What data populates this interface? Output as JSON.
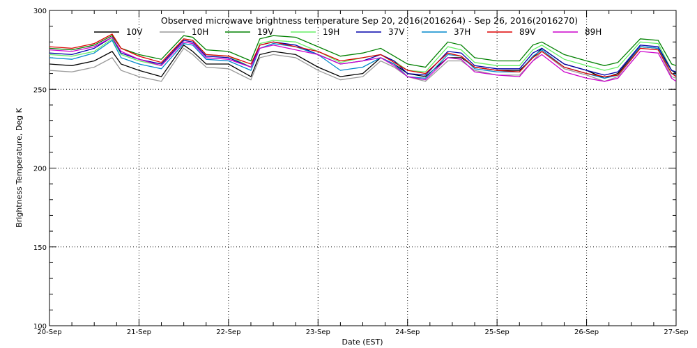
{
  "chart_data": {
    "type": "line",
    "title": "Observed microwave brightness temperature Sep 20, 2016(2016264) - Sep 26, 2016(2016270)",
    "xlabel": "Date (EST)",
    "ylabel": "Brightness Temperature, Deg K",
    "xlim": [
      0,
      7
    ],
    "ylim": [
      100,
      300
    ],
    "x_ticks": [
      {
        "x": 0,
        "label": "20-Sep"
      },
      {
        "x": 1,
        "label": "21-Sep"
      },
      {
        "x": 2,
        "label": "22-Sep"
      },
      {
        "x": 3,
        "label": "23-Sep"
      },
      {
        "x": 4,
        "label": "24-Sep"
      },
      {
        "x": 5,
        "label": "25-Sep"
      },
      {
        "x": 6,
        "label": "26-Sep"
      },
      {
        "x": 7,
        "label": "27-Sep"
      }
    ],
    "y_ticks": [
      100,
      150,
      200,
      250,
      300
    ],
    "grid": "dotted",
    "legend": "top-inside",
    "x_days": [
      0.0,
      0.25,
      0.5,
      0.7,
      0.8,
      1.0,
      1.25,
      1.5,
      1.6,
      1.75,
      2.0,
      2.25,
      2.35,
      2.5,
      2.75,
      3.0,
      3.25,
      3.5,
      3.7,
      3.85,
      4.0,
      4.2,
      4.45,
      4.6,
      4.75,
      5.0,
      5.25,
      5.4,
      5.5,
      5.75,
      6.0,
      6.2,
      6.35,
      6.6,
      6.8,
      6.95,
      7.0
    ],
    "series": [
      {
        "name": "10V",
        "color": "#000000",
        "values": [
          266,
          265,
          268,
          274,
          266,
          262,
          258,
          278,
          274,
          266,
          266,
          258,
          272,
          274,
          272,
          264,
          258,
          260,
          270,
          266,
          260,
          258,
          270,
          270,
          264,
          262,
          262,
          270,
          276,
          266,
          262,
          257,
          260,
          277,
          276,
          262,
          260
        ]
      },
      {
        "name": "10H",
        "color": "#999999",
        "values": [
          262,
          261,
          264,
          270,
          262,
          258,
          255,
          276,
          272,
          264,
          263,
          256,
          270,
          272,
          270,
          262,
          256,
          258,
          268,
          264,
          258,
          255,
          268,
          268,
          262,
          259,
          259,
          268,
          274,
          263,
          259,
          255,
          258,
          276,
          275,
          258,
          257
        ]
      },
      {
        "name": "19V",
        "color": "#008000",
        "values": [
          276,
          275,
          278,
          284,
          276,
          272,
          269,
          284,
          283,
          275,
          274,
          268,
          282,
          284,
          283,
          277,
          271,
          273,
          276,
          271,
          266,
          264,
          280,
          278,
          270,
          268,
          268,
          278,
          280,
          272,
          268,
          265,
          267,
          282,
          281,
          266,
          265
        ]
      },
      {
        "name": "19H",
        "color": "#66ee66",
        "values": [
          272,
          271,
          274,
          282,
          272,
          268,
          265,
          282,
          281,
          272,
          271,
          264,
          279,
          281,
          280,
          274,
          267,
          270,
          272,
          268,
          262,
          261,
          277,
          275,
          267,
          265,
          265,
          275,
          278,
          269,
          265,
          262,
          264,
          280,
          279,
          262,
          261
        ]
      },
      {
        "name": "37V",
        "color": "#0000aa",
        "values": [
          273,
          272,
          276,
          283,
          273,
          269,
          266,
          281,
          280,
          271,
          270,
          264,
          278,
          280,
          278,
          272,
          266,
          268,
          272,
          268,
          260,
          259,
          274,
          273,
          265,
          263,
          263,
          273,
          276,
          266,
          262,
          259,
          261,
          278,
          277,
          262,
          261
        ]
      },
      {
        "name": "37H",
        "color": "#0088cc",
        "values": [
          270,
          269,
          273,
          281,
          270,
          266,
          263,
          279,
          278,
          269,
          268,
          262,
          276,
          279,
          277,
          272,
          262,
          264,
          270,
          266,
          258,
          257,
          272,
          271,
          263,
          261,
          261,
          271,
          275,
          264,
          260,
          257,
          259,
          277,
          276,
          260,
          259
        ]
      },
      {
        "name": "89V",
        "color": "#dd0000",
        "values": [
          277,
          276,
          279,
          285,
          276,
          271,
          267,
          282,
          281,
          272,
          271,
          266,
          278,
          280,
          277,
          274,
          268,
          270,
          272,
          267,
          262,
          260,
          273,
          271,
          264,
          262,
          261,
          270,
          274,
          264,
          260,
          258,
          259,
          276,
          275,
          260,
          258
        ]
      },
      {
        "name": "89H",
        "color": "#cc00cc",
        "values": [
          275,
          274,
          277,
          283,
          274,
          269,
          265,
          280,
          279,
          270,
          269,
          264,
          276,
          278,
          275,
          272,
          266,
          268,
          270,
          265,
          258,
          256,
          270,
          269,
          261,
          259,
          258,
          268,
          272,
          261,
          257,
          255,
          257,
          274,
          273,
          257,
          255
        ]
      }
    ]
  }
}
